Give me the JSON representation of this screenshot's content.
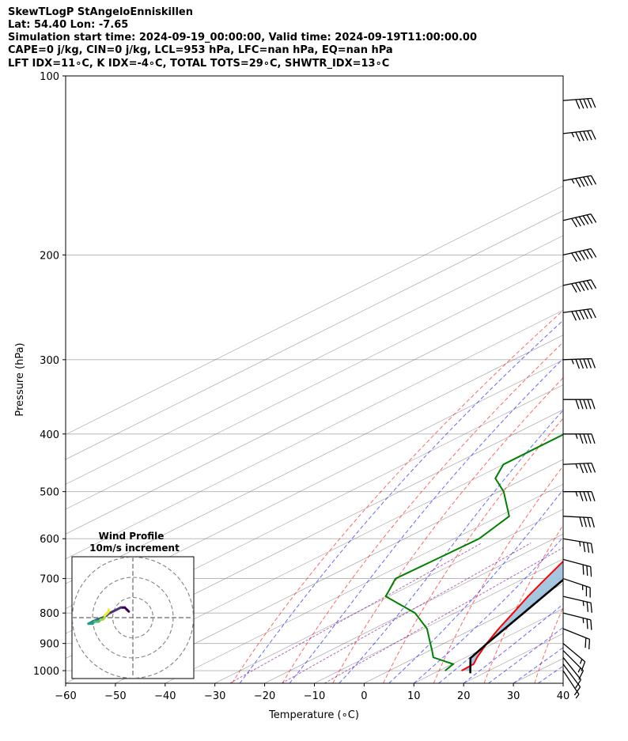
{
  "header": {
    "line1": "SkewTLogP StAngeloEnniskillen",
    "line2": "Lat: 54.40   Lon: -7.65",
    "line3": "Simulation start time: 2024-09-19_00:00:00, Valid time: 2024-09-19T11:00:00.00",
    "line4": "CAPE=0 j/kg, CIN=0 j/kg, LCL=953 hPa, LFC=nan hPa, EQ=nan hPa",
    "line5": "LFT IDX=11∘C, K IDX=-4∘C, TOTAL TOTS=29∘C, SHWTR_IDX=13∘C"
  },
  "chart_data": {
    "type": "line",
    "title": "SkewTLogP StAngeloEnniskillen",
    "xlabel": "Temperature (∘C)",
    "ylabel": "Pressure (hPa)",
    "xlim": [
      -60,
      40
    ],
    "ylim": [
      1050,
      100
    ],
    "x_ticks": [
      -60,
      -50,
      -40,
      -30,
      -20,
      -10,
      0,
      10,
      20,
      30,
      40
    ],
    "x_tick_labels": [
      "−60",
      "−50",
      "−40",
      "−30",
      "−20",
      "−10",
      "0",
      "10",
      "20",
      "30",
      "40"
    ],
    "y_ticks": [
      1000,
      900,
      800,
      700,
      600,
      500,
      400,
      300,
      200,
      100
    ],
    "y_scale": "log",
    "grid": true,
    "series": [
      {
        "role": "temperature",
        "color": "#ff0000",
        "pressure": [
          1000,
          975,
          950,
          925,
          900,
          850,
          800,
          750,
          700,
          650,
          600,
          550,
          500,
          450,
          400,
          350,
          300,
          250,
          225,
          200,
          175,
          150,
          135,
          125,
          110,
          100
        ],
        "temp": [
          14.5,
          14.3,
          12.3,
          10.5,
          8.6,
          5.1,
          1.7,
          -2.0,
          -5.6,
          -9.4,
          -13.5,
          -18.6,
          -23.7,
          -31.0,
          -36.9,
          -42.7,
          -47.9,
          -53.4,
          -57.7,
          -62.5,
          -67.0,
          -67.6,
          -64.1,
          -59.5,
          -56.5,
          -56.0
        ]
      },
      {
        "role": "dewpoint",
        "color": "#008000",
        "pressure": [
          1000,
          975,
          950,
          925,
          900,
          850,
          800,
          750,
          700,
          650,
          600,
          550,
          500,
          475,
          450,
          400,
          350,
          300,
          275,
          260,
          240,
          220,
          200,
          150,
          125,
          110,
          100
        ],
        "temp": [
          11.2,
          10.2,
          3.5,
          0.5,
          -2.7,
          -9.3,
          -18.0,
          -30.6,
          -35.8,
          -35.4,
          -35.0,
          -38.0,
          -49.0,
          -56.0,
          -60.0,
          -60.0,
          -58.0,
          -62.5,
          -68.0,
          -74.0,
          -75.0,
          -79.0,
          -80.0,
          -86.0,
          -90.0,
          -92.0,
          -90.0
        ]
      },
      {
        "role": "parcel",
        "color": "#000000",
        "pressure": [
          1010,
          953,
          900,
          800,
          700,
          600,
          500,
          400,
          300,
          200,
          150,
          100
        ],
        "temp": [
          17.3,
          11.3,
          8.7,
          3.8,
          -1.8,
          -8.8,
          -18.0,
          -31.0,
          -49.0,
          -75.0,
          -90.0,
          -110.0
        ]
      }
    ],
    "cape_fill_color": "#a0c4de",
    "wind_barbs": {
      "pressure": [
        1000,
        975,
        950,
        925,
        900,
        850,
        800,
        750,
        700,
        650,
        600,
        550,
        500,
        450,
        400,
        350,
        300,
        250,
        225,
        200,
        175,
        150,
        125,
        110
      ],
      "u": [
        -2,
        -3,
        -4,
        -5,
        -6,
        -10,
        -12,
        -13,
        -12,
        -15,
        -18,
        -20,
        -22,
        -22,
        -23,
        -25,
        -28,
        -30,
        -30,
        -31,
        -30,
        -28,
        -27,
        -26
      ],
      "v": [
        3,
        4,
        5,
        5,
        5,
        4,
        3,
        3,
        4,
        4,
        3,
        1,
        0,
        -1,
        0,
        0,
        -1,
        -4,
        -6,
        -7,
        -7,
        -5,
        -3,
        -2
      ]
    },
    "hodograph": {
      "title_line1": "Wind Profile",
      "title_line2": "10m/s increment",
      "u": [
        -2,
        -3,
        -4,
        -5,
        -6,
        -8,
        -10,
        -12,
        -13,
        -15,
        -18,
        -20,
        -22,
        -22,
        -21,
        -20,
        -19,
        -18,
        -17,
        -16,
        -15,
        -14,
        -14,
        -13,
        -12,
        -12
      ],
      "v": [
        3,
        4,
        5,
        5,
        5,
        4,
        3,
        2,
        1,
        0,
        -1,
        -2,
        -3,
        -3,
        -3,
        -3,
        -2,
        -2,
        -2,
        -1,
        -1,
        0,
        1,
        2,
        3,
        4
      ]
    },
    "reference_lines": {
      "dry_adiabat_color": "#ff0000",
      "moist_adiabat_color": "#0000ff",
      "mixing_ratio_color": "#800080",
      "isotherm_color": "#808080"
    }
  }
}
